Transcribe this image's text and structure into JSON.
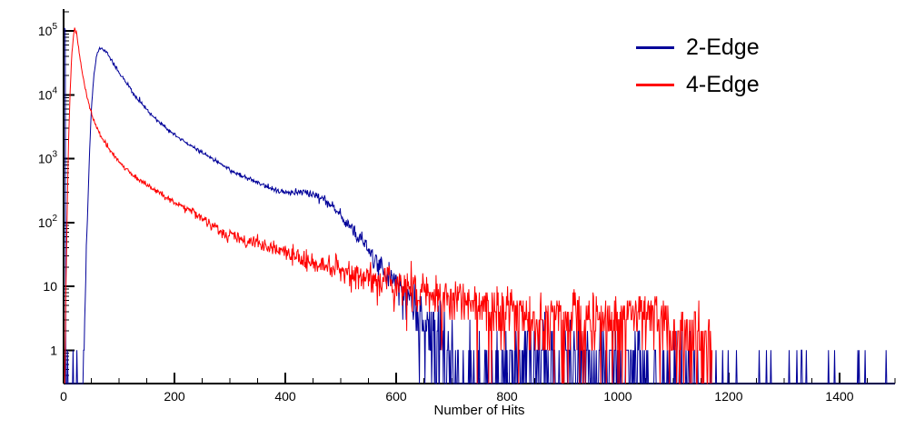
{
  "figure": {
    "background": "#ffffff",
    "xlabel": "Number of Hits"
  },
  "legend": {
    "entries": [
      {
        "label": "2-Edge",
        "color": "#000099"
      },
      {
        "label": "4-Edge",
        "color": "#ff0000"
      }
    ]
  },
  "chart_data": {
    "type": "line",
    "subtype": "step-histogram-log-y",
    "title": "",
    "xlabel": "Number of Hits",
    "ylabel": "",
    "grid": false,
    "legend_position": "top-right",
    "x_axis": {
      "min": 0,
      "max": 1500,
      "major_ticks": [
        0,
        200,
        400,
        600,
        800,
        1000,
        1200,
        1400
      ],
      "minor_tick_step": 50
    },
    "y_axis": {
      "scale": "log",
      "min": 0.3,
      "max": 220000,
      "decade_ticks": [
        1,
        10,
        100,
        1000,
        10000,
        100000
      ],
      "decade_labels": [
        "1",
        "10",
        "10^2",
        "10^3",
        "10^4",
        "10^5"
      ]
    },
    "noise": {
      "model": "poisson",
      "seed": 12345
    },
    "series": [
      {
        "name": "2-Edge",
        "color": "#000099",
        "seed": 7,
        "peak": {
          "x": 65,
          "y": 55000
        },
        "envelope_points": [
          [
            1,
            105000
          ],
          [
            3,
            105000
          ],
          [
            4,
            0.05
          ],
          [
            33,
            0.05
          ],
          [
            38,
            2
          ],
          [
            42,
            60
          ],
          [
            46,
            800
          ],
          [
            50,
            6000
          ],
          [
            55,
            22000
          ],
          [
            60,
            42000
          ],
          [
            65,
            55000
          ],
          [
            70,
            53000
          ],
          [
            78,
            45000
          ],
          [
            88,
            33000
          ],
          [
            100,
            22000
          ],
          [
            115,
            14500
          ],
          [
            130,
            9500
          ],
          [
            150,
            5800
          ],
          [
            170,
            3900
          ],
          [
            190,
            2750
          ],
          [
            210,
            2050
          ],
          [
            230,
            1600
          ],
          [
            250,
            1250
          ],
          [
            270,
            980
          ],
          [
            290,
            760
          ],
          [
            310,
            600
          ],
          [
            330,
            500
          ],
          [
            350,
            420
          ],
          [
            370,
            350
          ],
          [
            390,
            310
          ],
          [
            410,
            295
          ],
          [
            430,
            300
          ],
          [
            450,
            280
          ],
          [
            470,
            230
          ],
          [
            490,
            160
          ],
          [
            510,
            100
          ],
          [
            530,
            60
          ],
          [
            550,
            38
          ],
          [
            570,
            22
          ],
          [
            590,
            14
          ],
          [
            610,
            9
          ],
          [
            630,
            5.5
          ],
          [
            650,
            3
          ],
          [
            670,
            1.8
          ],
          [
            690,
            1
          ],
          [
            710,
            0.55
          ],
          [
            740,
            0.35
          ],
          [
            780,
            0.5
          ],
          [
            820,
            0.55
          ],
          [
            860,
            0.5
          ],
          [
            900,
            0.55
          ],
          [
            940,
            0.45
          ],
          [
            980,
            0.5
          ],
          [
            1020,
            0.35
          ],
          [
            1060,
            0.3
          ],
          [
            1100,
            0.3
          ],
          [
            1140,
            0.25
          ],
          [
            1170,
            0.12
          ],
          [
            1200,
            0.05
          ],
          [
            1260,
            0.04
          ],
          [
            1320,
            0.04
          ],
          [
            1380,
            0.05
          ],
          [
            1440,
            0.06
          ],
          [
            1500,
            0.06
          ]
        ]
      },
      {
        "name": "4-Edge",
        "color": "#ff0000",
        "seed": 99,
        "peak": {
          "x": 20,
          "y": 105000
        },
        "envelope_points": [
          [
            2,
            0.3
          ],
          [
            5,
            25
          ],
          [
            7,
            300
          ],
          [
            9,
            2000
          ],
          [
            12,
            12000
          ],
          [
            15,
            45000
          ],
          [
            18,
            90000
          ],
          [
            20,
            105000
          ],
          [
            23,
            95000
          ],
          [
            26,
            62000
          ],
          [
            30,
            35000
          ],
          [
            35,
            19000
          ],
          [
            40,
            11500
          ],
          [
            46,
            7000
          ],
          [
            52,
            4600
          ],
          [
            60,
            3000
          ],
          [
            70,
            2050
          ],
          [
            80,
            1500
          ],
          [
            92,
            1100
          ],
          [
            105,
            800
          ],
          [
            120,
            600
          ],
          [
            135,
            470
          ],
          [
            155,
            360
          ],
          [
            175,
            285
          ],
          [
            200,
            205
          ],
          [
            225,
            160
          ],
          [
            250,
            120
          ],
          [
            270,
            92
          ],
          [
            285,
            72
          ],
          [
            300,
            62
          ],
          [
            320,
            57
          ],
          [
            340,
            52
          ],
          [
            360,
            46
          ],
          [
            380,
            40
          ],
          [
            400,
            33
          ],
          [
            425,
            28
          ],
          [
            450,
            24
          ],
          [
            480,
            20
          ],
          [
            510,
            17
          ],
          [
            540,
            15
          ],
          [
            570,
            13
          ],
          [
            600,
            11
          ],
          [
            630,
            9.5
          ],
          [
            660,
            8
          ],
          [
            700,
            6.5
          ],
          [
            740,
            5.5
          ],
          [
            780,
            4.5
          ],
          [
            820,
            4
          ],
          [
            860,
            3.5
          ],
          [
            900,
            3.2
          ],
          [
            940,
            3.2
          ],
          [
            980,
            3
          ],
          [
            1010,
            3.2
          ],
          [
            1035,
            4.5
          ],
          [
            1055,
            5
          ],
          [
            1075,
            3.5
          ],
          [
            1100,
            2.2
          ],
          [
            1130,
            1.6
          ],
          [
            1155,
            1.3
          ],
          [
            1170,
            1
          ]
        ]
      }
    ]
  }
}
